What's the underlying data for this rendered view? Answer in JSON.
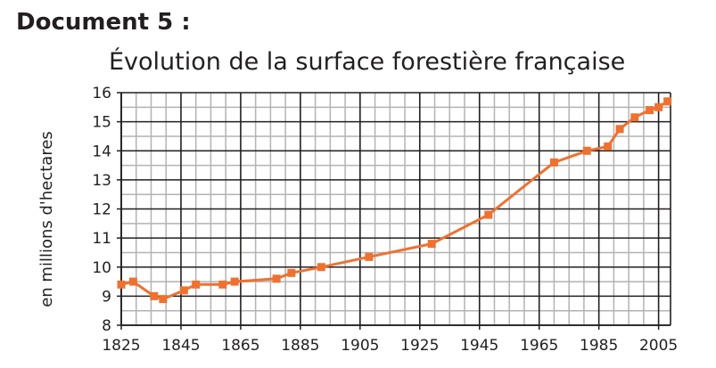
{
  "document_label": "Document 5 :",
  "chart_data": {
    "type": "line",
    "title": "Évolution de la surface forestière française",
    "xlabel": "",
    "ylabel": "en millions d'hectares",
    "xlim": [
      1825,
      2009
    ],
    "ylim": [
      8,
      16
    ],
    "x_ticks": [
      1825,
      1845,
      1865,
      1885,
      1905,
      1925,
      1945,
      1965,
      1985,
      2005
    ],
    "y_ticks": [
      8,
      9,
      10,
      11,
      12,
      13,
      14,
      15,
      16
    ],
    "grid": true,
    "line_color": "#ee7130",
    "grid_color": "#b3b3b3",
    "marker": "square",
    "series": [
      {
        "points": [
          [
            1825,
            9.4
          ],
          [
            1829,
            9.5
          ],
          [
            1836,
            9.0
          ],
          [
            1839,
            8.9
          ],
          [
            1846,
            9.2
          ],
          [
            1850,
            9.4
          ],
          [
            1859,
            9.4
          ],
          [
            1863,
            9.5
          ],
          [
            1877,
            9.6
          ],
          [
            1882,
            9.8
          ],
          [
            1892,
            10.0
          ],
          [
            1908,
            10.35
          ],
          [
            1929,
            10.8
          ],
          [
            1948,
            11.8
          ],
          [
            1970,
            13.6
          ],
          [
            1981,
            14.0
          ],
          [
            1988,
            14.15
          ],
          [
            1992,
            14.75
          ],
          [
            1997,
            15.15
          ],
          [
            2002,
            15.4
          ],
          [
            2005,
            15.5
          ],
          [
            2008,
            15.7
          ]
        ]
      }
    ]
  }
}
